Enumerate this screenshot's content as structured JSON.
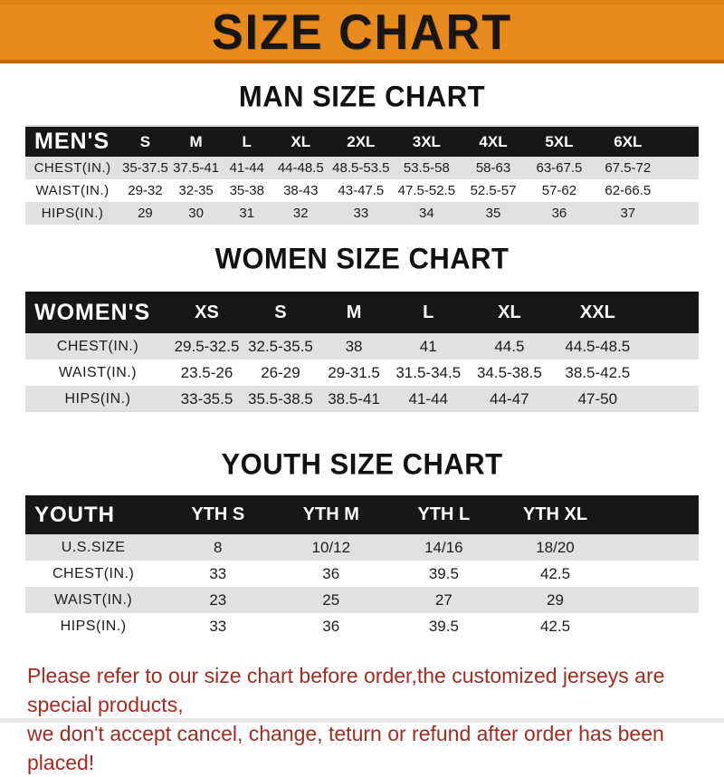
{
  "banner": {
    "title": "SIZE CHART"
  },
  "sections": [
    {
      "heading": "MAN SIZE CHART",
      "header": {
        "label": "MEN'S",
        "sizes": [
          "S",
          "M",
          "L",
          "XL",
          "2XL",
          "3XL",
          "4XL",
          "5XL",
          "6XL"
        ]
      },
      "rows": [
        {
          "label": "CHEST(IN.)",
          "values": [
            "35-37.5",
            "37.5-41",
            "41-44",
            "44-48.5",
            "48.5-53.5",
            "53.5-58",
            "58-63",
            "63-67.5",
            "67.5-72"
          ]
        },
        {
          "label": "WAIST(IN.)",
          "values": [
            "29-32",
            "32-35",
            "35-38",
            "38-43",
            "43-47.5",
            "47.5-52.5",
            "52.5-57",
            "57-62",
            "62-66.5"
          ]
        },
        {
          "label": "HIPS(IN.)",
          "values": [
            "29",
            "30",
            "31",
            "32",
            "33",
            "34",
            "35",
            "36",
            "37"
          ]
        }
      ]
    },
    {
      "heading": "WOMEN SIZE CHART",
      "header": {
        "label": "WOMEN'S",
        "sizes": [
          "XS",
          "S",
          "M",
          "L",
          "XL",
          "XXL"
        ]
      },
      "rows": [
        {
          "label": "CHEST(IN.)",
          "values": [
            "29.5-32.5",
            "32.5-35.5",
            "38",
            "41",
            "44.5",
            "44.5-48.5"
          ]
        },
        {
          "label": "WAIST(IN.)",
          "values": [
            "23.5-26",
            "26-29",
            "29-31.5",
            "31.5-34.5",
            "34.5-38.5",
            "38.5-42.5"
          ]
        },
        {
          "label": "HIPS(IN.)",
          "values": [
            "33-35.5",
            "35.5-38.5",
            "38.5-41",
            "41-44",
            "44-47",
            "47-50"
          ]
        }
      ]
    },
    {
      "heading": "YOUTH SIZE CHART",
      "header": {
        "label": "YOUTH",
        "sizes": [
          "YTH S",
          "YTH M",
          "YTH L",
          "YTH XL"
        ]
      },
      "rows": [
        {
          "label": "U.S.SIZE",
          "values": [
            "8",
            "10/12",
            "14/16",
            "18/20"
          ]
        },
        {
          "label": "CHEST(IN.)",
          "values": [
            "33",
            "36",
            "39.5",
            "42.5"
          ]
        },
        {
          "label": "WAIST(IN.)",
          "values": [
            "23",
            "25",
            "27",
            "29"
          ]
        },
        {
          "label": "HIPS(IN.)",
          "values": [
            "33",
            "36",
            "39.5",
            "42.5"
          ]
        }
      ]
    }
  ],
  "footer": {
    "line1": "Please refer to our size chart before order,the customized jerseys are special products,",
    "line2": "we don't accept cancel, change, teturn or refund after order has been placed!"
  },
  "colors": {
    "banner_orange": "#E98A1D",
    "banner_border_dark": "#C16A0E",
    "band_black": "#171717",
    "stripe_gray": "#E1E1E1",
    "footer_red": "#A32B22",
    "heading_black": "#111111"
  }
}
